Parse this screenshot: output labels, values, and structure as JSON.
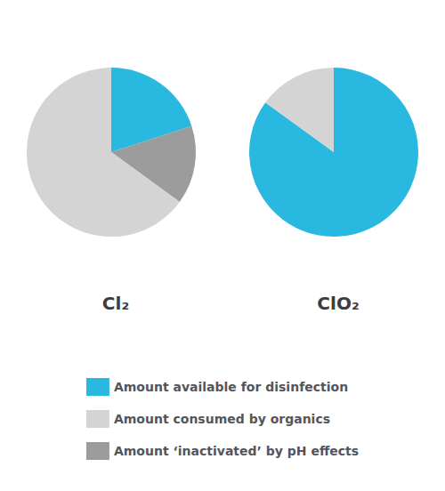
{
  "chart_data": [
    {
      "type": "pie",
      "title": "Cl₂",
      "categories": [
        "Amount available for disinfection",
        "Amount ‘inactivated’ by pH effects",
        "Amount consumed by organics"
      ],
      "values": [
        20,
        15,
        65
      ],
      "colors": [
        "#29b8e0",
        "#9c9c9c",
        "#d4d4d4"
      ],
      "legend": "bottom"
    },
    {
      "type": "pie",
      "title": "ClO₂",
      "categories": [
        "Amount available for disinfection",
        "Amount consumed by organics"
      ],
      "values": [
        85,
        15
      ],
      "colors": [
        "#29b8e0",
        "#d4d4d4"
      ]
    }
  ]
}
